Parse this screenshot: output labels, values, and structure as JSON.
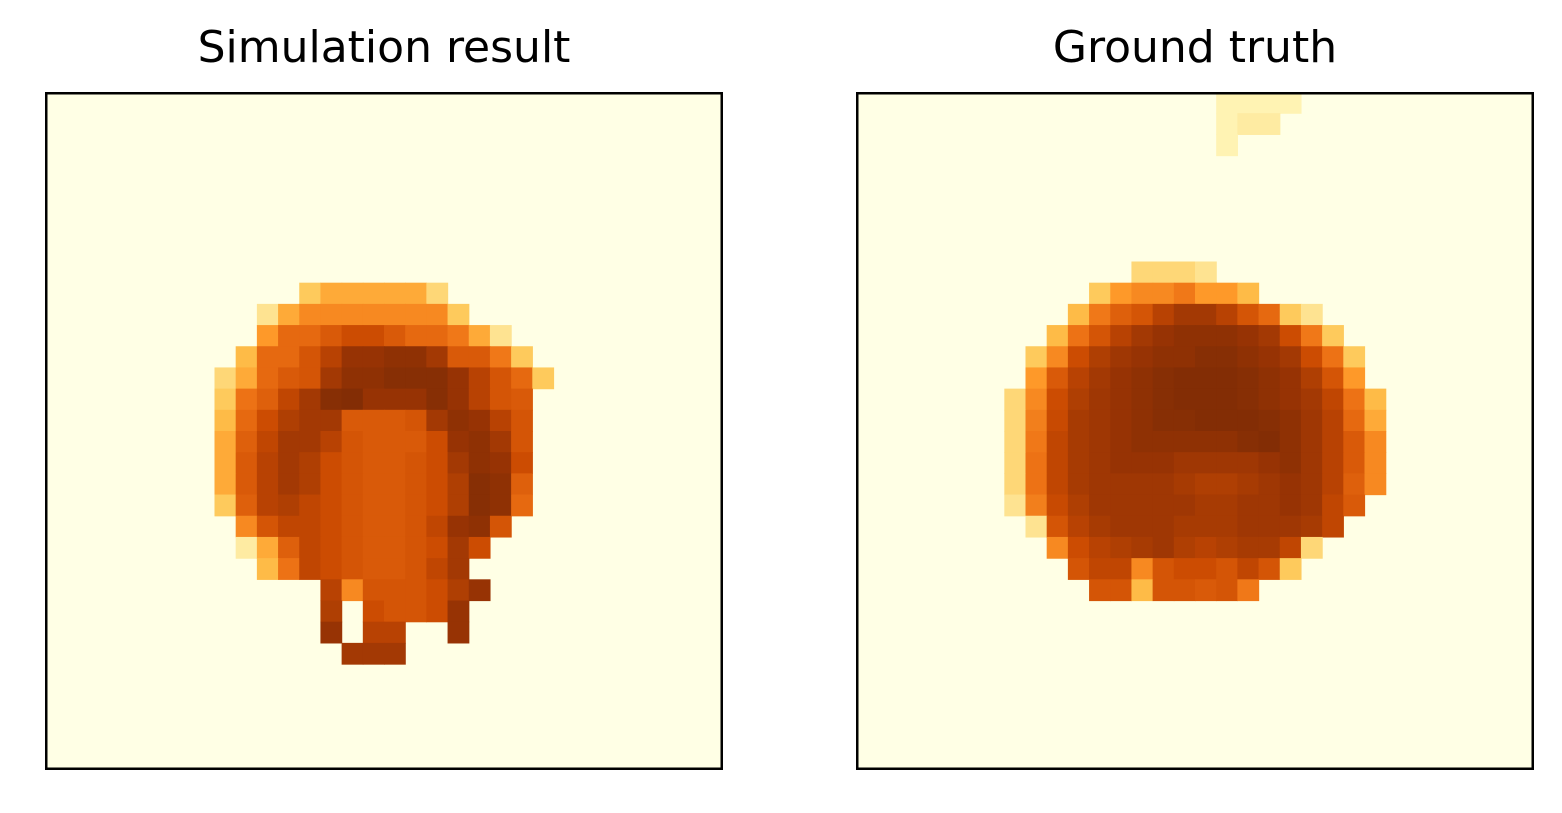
{
  "chart_data": [
    {
      "type": "heatmap",
      "title": "Simulation result",
      "colormap": "YlOrBr",
      "value_range": [
        0,
        1
      ],
      "grid_size": [
        32,
        32
      ],
      "ticks": "none",
      "background_value": 0.0,
      "colors": {
        "background": "#ffffe5",
        "axis": "#000000"
      },
      "rows": [
        {
          "r": 9,
          "c0": 12,
          "values": [
            0.35,
            0.45,
            0.45,
            0.45,
            0.45,
            0.45,
            0.3
          ]
        },
        {
          "r": 10,
          "c0": 10,
          "values": [
            0.25,
            0.45,
            0.55,
            0.55,
            0.55,
            0.55,
            0.55,
            0.55,
            0.55,
            0.35
          ]
        },
        {
          "r": 11,
          "c0": 10,
          "values": [
            0.5,
            0.65,
            0.65,
            0.7,
            0.75,
            0.75,
            0.7,
            0.65,
            0.65,
            0.6,
            0.45,
            0.25
          ]
        },
        {
          "r": 12,
          "c0": 9,
          "values": [
            0.4,
            0.65,
            0.65,
            0.72,
            0.8,
            0.88,
            0.88,
            0.9,
            0.9,
            0.85,
            0.7,
            0.7,
            0.6,
            0.35
          ]
        },
        {
          "r": 13,
          "c0": 8,
          "values": [
            0.3,
            0.45,
            0.65,
            0.7,
            0.72,
            0.85,
            0.9,
            0.9,
            0.92,
            0.92,
            0.92,
            0.88,
            0.8,
            0.72,
            0.65,
            0.35
          ]
        },
        {
          "r": 14,
          "c0": 8,
          "values": [
            0.35,
            0.62,
            0.68,
            0.78,
            0.85,
            0.92,
            0.93,
            0.88,
            0.88,
            0.88,
            0.92,
            0.88,
            0.8,
            0.72,
            0.7
          ]
        },
        {
          "r": 15,
          "c0": 8,
          "values": [
            0.4,
            0.65,
            0.75,
            0.82,
            0.85,
            0.85,
            0.7,
            0.7,
            0.7,
            0.72,
            0.85,
            0.9,
            0.88,
            0.8,
            0.72
          ]
        },
        {
          "r": 16,
          "c0": 8,
          "values": [
            0.45,
            0.68,
            0.78,
            0.85,
            0.85,
            0.8,
            0.72,
            0.7,
            0.7,
            0.7,
            0.75,
            0.88,
            0.9,
            0.85,
            0.72
          ]
        },
        {
          "r": 17,
          "c0": 8,
          "values": [
            0.45,
            0.7,
            0.8,
            0.85,
            0.82,
            0.75,
            0.72,
            0.7,
            0.7,
            0.72,
            0.75,
            0.85,
            0.9,
            0.88,
            0.75
          ]
        },
        {
          "r": 18,
          "c0": 8,
          "values": [
            0.45,
            0.7,
            0.8,
            0.85,
            0.82,
            0.75,
            0.72,
            0.7,
            0.7,
            0.72,
            0.75,
            0.82,
            0.92,
            0.9,
            0.68
          ]
        },
        {
          "r": 19,
          "c0": 8,
          "values": [
            0.35,
            0.68,
            0.8,
            0.82,
            0.78,
            0.75,
            0.72,
            0.7,
            0.7,
            0.72,
            0.75,
            0.82,
            0.92,
            0.9,
            0.65
          ]
        },
        {
          "r": 20,
          "c0": 9,
          "values": [
            0.55,
            0.72,
            0.78,
            0.78,
            0.75,
            0.72,
            0.7,
            0.7,
            0.72,
            0.78,
            0.88,
            0.9,
            0.72
          ]
        },
        {
          "r": 21,
          "c0": 9,
          "values": [
            0.2,
            0.45,
            0.68,
            0.78,
            0.75,
            0.72,
            0.7,
            0.7,
            0.72,
            0.75,
            0.85,
            0.75
          ]
        },
        {
          "r": 22,
          "c0": 10,
          "values": [
            0.4,
            0.62,
            0.78,
            0.75,
            0.72,
            0.7,
            0.7,
            0.72,
            0.78,
            0.85
          ]
        },
        {
          "r": 23,
          "c0": 13,
          "values": [
            0.8,
            0.55,
            0.72,
            0.72,
            0.72,
            0.75,
            0.82,
            0.88
          ]
        },
        {
          "r": 24,
          "c0": 13,
          "values": [
            0.82,
            0.0,
            0.75,
            0.72,
            0.72,
            0.75,
            0.88
          ]
        },
        {
          "r": 25,
          "c0": 13,
          "values": [
            0.88,
            0.0,
            0.8,
            0.8,
            0.0,
            0.0,
            0.88
          ]
        },
        {
          "r": 26,
          "c0": 14,
          "values": [
            0.85,
            0.85,
            0.85
          ]
        }
      ]
    },
    {
      "type": "heatmap",
      "title": "Ground truth",
      "colormap": "YlOrBr",
      "value_range": [
        0,
        1
      ],
      "grid_size": [
        32,
        32
      ],
      "ticks": "none",
      "background_value": 0.0,
      "colors": {
        "background": "#ffffe5",
        "axis": "#000000"
      },
      "rows": [
        {
          "r": 0,
          "c0": 17,
          "values": [
            0.15,
            0.15,
            0.15,
            0.15
          ]
        },
        {
          "r": 1,
          "c0": 17,
          "values": [
            0.15,
            0.2,
            0.2
          ]
        },
        {
          "r": 2,
          "c0": 17,
          "values": [
            0.15
          ]
        },
        {
          "r": 8,
          "c0": 13,
          "values": [
            0.3,
            0.3,
            0.3,
            0.25
          ]
        },
        {
          "r": 9,
          "c0": 11,
          "values": [
            0.35,
            0.5,
            0.55,
            0.55,
            0.6,
            0.5,
            0.5,
            0.4
          ]
        },
        {
          "r": 10,
          "c0": 10,
          "values": [
            0.4,
            0.6,
            0.68,
            0.72,
            0.8,
            0.85,
            0.85,
            0.8,
            0.72,
            0.65,
            0.35,
            0.25
          ]
        },
        {
          "r": 11,
          "c0": 9,
          "values": [
            0.4,
            0.62,
            0.72,
            0.8,
            0.85,
            0.88,
            0.9,
            0.9,
            0.9,
            0.88,
            0.85,
            0.75,
            0.6,
            0.35
          ]
        },
        {
          "r": 12,
          "c0": 8,
          "values": [
            0.35,
            0.55,
            0.75,
            0.82,
            0.86,
            0.88,
            0.9,
            0.9,
            0.92,
            0.92,
            0.9,
            0.88,
            0.85,
            0.75,
            0.62,
            0.35
          ]
        },
        {
          "r": 13,
          "c0": 8,
          "values": [
            0.5,
            0.7,
            0.8,
            0.85,
            0.88,
            0.9,
            0.92,
            0.93,
            0.93,
            0.93,
            0.92,
            0.9,
            0.88,
            0.82,
            0.72,
            0.5
          ]
        },
        {
          "r": 14,
          "c0": 7,
          "values": [
            0.3,
            0.55,
            0.75,
            0.82,
            0.86,
            0.88,
            0.9,
            0.92,
            0.93,
            0.93,
            0.93,
            0.92,
            0.9,
            0.88,
            0.85,
            0.78,
            0.62,
            0.4
          ]
        },
        {
          "r": 15,
          "c0": 7,
          "values": [
            0.3,
            0.58,
            0.76,
            0.84,
            0.86,
            0.88,
            0.9,
            0.92,
            0.92,
            0.93,
            0.93,
            0.93,
            0.92,
            0.9,
            0.86,
            0.8,
            0.65,
            0.45
          ]
        },
        {
          "r": 16,
          "c0": 7,
          "values": [
            0.3,
            0.6,
            0.78,
            0.84,
            0.86,
            0.88,
            0.9,
            0.9,
            0.9,
            0.9,
            0.9,
            0.92,
            0.93,
            0.9,
            0.86,
            0.8,
            0.7,
            0.55
          ]
        },
        {
          "r": 17,
          "c0": 7,
          "values": [
            0.3,
            0.62,
            0.78,
            0.84,
            0.86,
            0.88,
            0.88,
            0.88,
            0.86,
            0.86,
            0.86,
            0.86,
            0.88,
            0.9,
            0.86,
            0.8,
            0.7,
            0.55
          ]
        },
        {
          "r": 18,
          "c0": 7,
          "values": [
            0.3,
            0.62,
            0.78,
            0.84,
            0.86,
            0.86,
            0.86,
            0.86,
            0.84,
            0.82,
            0.82,
            0.84,
            0.86,
            0.88,
            0.86,
            0.8,
            0.68,
            0.55
          ]
        },
        {
          "r": 19,
          "c0": 7,
          "values": [
            0.25,
            0.58,
            0.76,
            0.82,
            0.86,
            0.86,
            0.86,
            0.86,
            0.86,
            0.84,
            0.84,
            0.86,
            0.86,
            0.88,
            0.86,
            0.78,
            0.7
          ]
        },
        {
          "r": 20,
          "c0": 8,
          "values": [
            0.25,
            0.72,
            0.8,
            0.84,
            0.86,
            0.86,
            0.86,
            0.84,
            0.84,
            0.84,
            0.86,
            0.86,
            0.86,
            0.84,
            0.78
          ]
        },
        {
          "r": 21,
          "c0": 9,
          "values": [
            0.55,
            0.75,
            0.8,
            0.82,
            0.84,
            0.86,
            0.82,
            0.8,
            0.82,
            0.84,
            0.84,
            0.78,
            0.3
          ]
        },
        {
          "r": 22,
          "c0": 10,
          "values": [
            0.72,
            0.78,
            0.78,
            0.55,
            0.72,
            0.75,
            0.75,
            0.72,
            0.78,
            0.72,
            0.35
          ]
        },
        {
          "r": 23,
          "c0": 11,
          "values": [
            0.72,
            0.72,
            0.4,
            0.72,
            0.72,
            0.7,
            0.72,
            0.6
          ]
        }
      ]
    }
  ]
}
